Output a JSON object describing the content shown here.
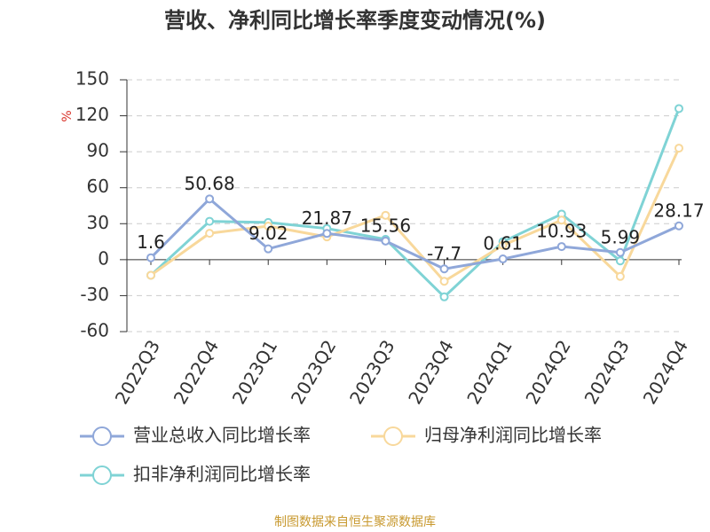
{
  "chart_data": {
    "type": "line",
    "title": "营收、净利同比增长率季度变动情况(%)",
    "y_label": "%",
    "categories": [
      "2022Q3",
      "2022Q4",
      "2023Q1",
      "2023Q2",
      "2023Q3",
      "2023Q4",
      "2024Q1",
      "2024Q2",
      "2024Q3",
      "2024Q4"
    ],
    "series": [
      {
        "name": "营业总收入同比增长率",
        "color": "#8fa7d9",
        "values": [
          1.6,
          50.68,
          9.02,
          21.87,
          15.56,
          -7.7,
          0.61,
          10.93,
          5.99,
          28.17
        ],
        "show_labels": true
      },
      {
        "name": "归母净利润同比增长率",
        "color": "#f8d89b",
        "values": [
          -13,
          22,
          28,
          19,
          37,
          -18,
          12,
          33,
          -14,
          93
        ],
        "show_labels": false
      },
      {
        "name": "扣非净利润同比增长率",
        "color": "#7fd3d5",
        "values": [
          -13,
          32,
          31,
          26,
          17,
          -31,
          15,
          38,
          -1,
          126
        ],
        "show_labels": false
      }
    ],
    "ylim": [
      -60,
      150
    ],
    "yticks": [
      -60,
      -30,
      0,
      30,
      60,
      90,
      120,
      150
    ],
    "grid": true,
    "source": "制图数据来自恒生聚源数据库"
  }
}
